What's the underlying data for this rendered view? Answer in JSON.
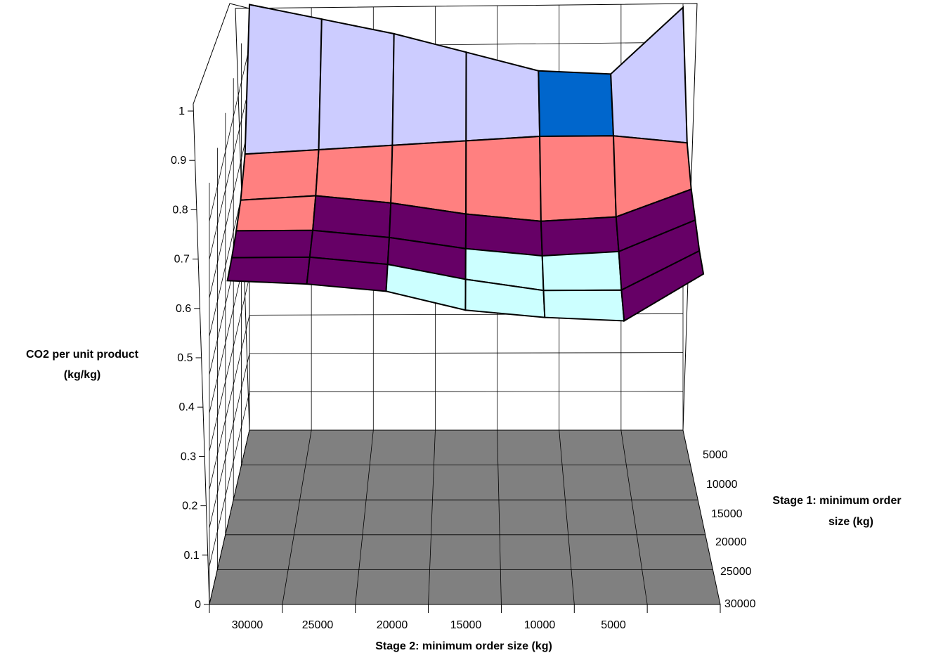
{
  "chart_data": {
    "type": "surface",
    "title": "",
    "zlabel_lines": [
      "CO2 per unit product",
      "(kg/kg)"
    ],
    "xlabel": "Stage 2: minimum order size (kg)",
    "ylabel_lines": [
      "Stage 1: minimum order",
      "size (kg)"
    ],
    "z_ticks": [
      "0",
      "0.1",
      "0.2",
      "0.3",
      "0.4",
      "0.5",
      "0.6",
      "0.7",
      "0.8",
      "0.9",
      "1"
    ],
    "x_ticks": [
      "30000",
      "25000",
      "20000",
      "15000",
      "10000",
      "5000"
    ],
    "y_ticks": [
      "5000",
      "10000",
      "15000",
      "20000",
      "25000",
      "30000"
    ],
    "zlim": [
      0,
      1.1
    ],
    "grid": true,
    "floor_color": "#808080",
    "band_colors": [
      "#ff00ff",
      "#000080",
      "#ccccff",
      "#0066cc",
      "#ff8080",
      "#660066",
      "#ccffff"
    ],
    "grid_x": [
      35000,
      30000,
      25000,
      20000,
      15000,
      10000,
      5000
    ],
    "grid_y": [
      5000,
      10000,
      15000,
      20000,
      25000,
      30000
    ],
    "z_values": [
      [
        1.11,
        1.07,
        1.03,
        0.98,
        0.93,
        0.92,
        1.09
      ],
      [
        0.77,
        0.78,
        0.79,
        0.8,
        0.81,
        0.81,
        0.79
      ],
      [
        0.7,
        0.71,
        0.69,
        0.66,
        0.64,
        0.65,
        0.72
      ],
      [
        0.67,
        0.67,
        0.65,
        0.62,
        0.6,
        0.61,
        0.69
      ],
      [
        0.65,
        0.65,
        0.63,
        0.59,
        0.56,
        0.56,
        0.66
      ],
      [
        0.64,
        0.63,
        0.61,
        0.56,
        0.54,
        0.53,
        0.65
      ]
    ]
  }
}
